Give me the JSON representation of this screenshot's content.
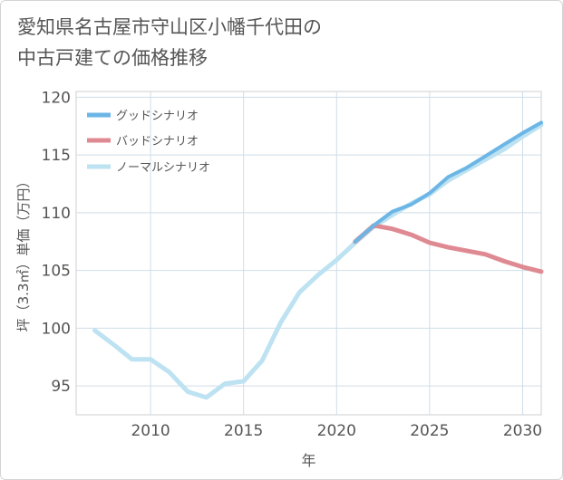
{
  "title": {
    "line1": "愛知県名古屋市守山区小幡千代田の",
    "line2": "中古戸建ての価格推移"
  },
  "chart_data": {
    "type": "line",
    "title": "愛知県名古屋市守山区小幡千代田の中古戸建ての価格推移",
    "xlabel": "年",
    "ylabel": "坪（3.3㎡）単価（万円）",
    "xlim": [
      2006,
      2031
    ],
    "ylim": [
      92.5,
      120.5
    ],
    "xticks": [
      2010,
      2015,
      2020,
      2025,
      2030
    ],
    "yticks": [
      95,
      100,
      105,
      110,
      115,
      120
    ],
    "grid": true,
    "legend_position": "top-left",
    "colors": {
      "good": "#6cb6e6",
      "bad": "#df8a92",
      "normal": "#bde2f1"
    },
    "series": [
      {
        "name": "グッドシナリオ",
        "key": "good",
        "x": [
          2021,
          2022,
          2023,
          2024,
          2025,
          2026,
          2027,
          2028,
          2029,
          2030,
          2031
        ],
        "y": [
          107.5,
          108.9,
          110.1,
          110.7,
          111.7,
          113.1,
          113.9,
          114.9,
          115.9,
          116.9,
          117.8
        ]
      },
      {
        "name": "バッドシナリオ",
        "key": "bad",
        "x": [
          2021,
          2022,
          2023,
          2024,
          2025,
          2026,
          2027,
          2028,
          2029,
          2030,
          2031
        ],
        "y": [
          107.5,
          108.9,
          108.6,
          108.1,
          107.4,
          107.0,
          106.7,
          106.4,
          105.8,
          105.3,
          104.9
        ]
      },
      {
        "name": "ノーマルシナリオ",
        "key": "normal",
        "x": [
          2007,
          2008,
          2009,
          2010,
          2011,
          2012,
          2013,
          2014,
          2015,
          2016,
          2017,
          2018,
          2019,
          2020,
          2021,
          2022,
          2023,
          2024,
          2025,
          2026,
          2027,
          2028,
          2029,
          2030,
          2031
        ],
        "y": [
          99.8,
          98.6,
          97.3,
          97.3,
          96.2,
          94.5,
          94.0,
          95.2,
          95.4,
          97.2,
          100.5,
          103.1,
          104.6,
          105.9,
          107.4,
          108.8,
          109.8,
          110.8,
          111.6,
          112.8,
          113.7,
          114.6,
          115.5,
          116.6,
          117.6
        ]
      }
    ]
  }
}
